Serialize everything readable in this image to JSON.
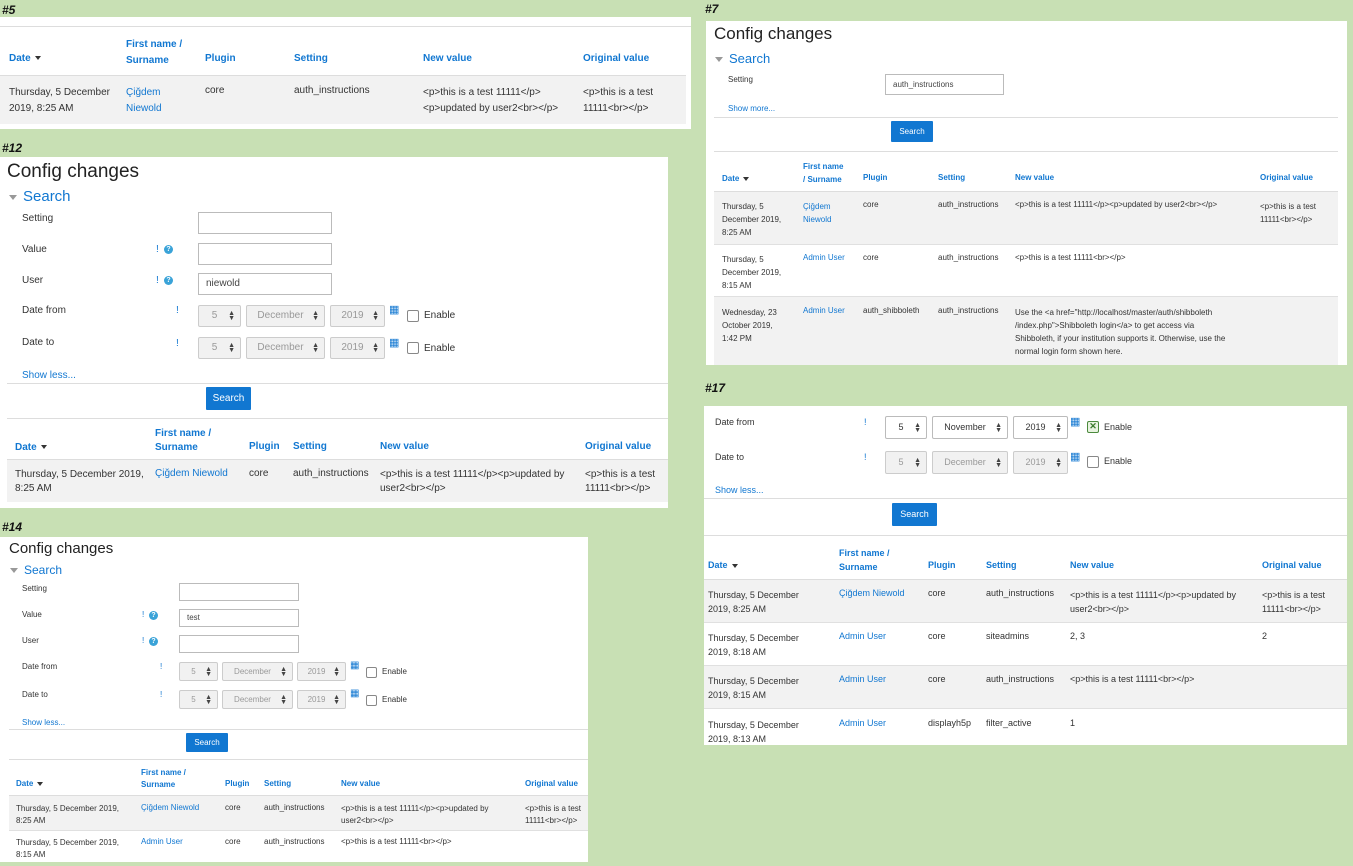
{
  "p5": {
    "label": "#5",
    "headers": {
      "date": "Date",
      "name1": "First name /",
      "name2": "Surname",
      "plugin": "Plugin",
      "setting": "Setting",
      "newval": "New value",
      "orig": "Original value"
    },
    "rows": [
      {
        "date1": "Thursday, 5 December",
        "date2": "2019, 8:25 AM",
        "user1": "Çiğdem",
        "user2": "Niewold",
        "plugin": "core",
        "setting": "auth_instructions",
        "new1": "<p>this is a test 11111</p>",
        "new2": "<p>updated by user2<br></p>",
        "orig1": "<p>this is a test",
        "orig2": "11111<br></p>"
      }
    ]
  },
  "p12": {
    "label": "#12",
    "title": "Config changes",
    "search": "Search",
    "f_setting": "Setting",
    "f_value": "Value",
    "f_user": "User",
    "user_value": "niewold",
    "f_datefrom": "Date from",
    "f_dateto": "Date to",
    "mark": "!",
    "help": "?",
    "day": "5",
    "month": "December",
    "year": "2019",
    "enable": "Enable",
    "show": "Show less...",
    "button": "Search",
    "headers": {
      "date": "Date",
      "name1": "First name /",
      "name2": "Surname",
      "plugin": "Plugin",
      "setting": "Setting",
      "newval": "New value",
      "orig": "Original value"
    },
    "rows": [
      {
        "date1": "Thursday, 5 December 2019,",
        "date2": "8:25 AM",
        "user": "Çiğdem Niewold",
        "plugin": "core",
        "setting": "auth_instructions",
        "new1": "<p>this is a test 11111</p><p>updated by",
        "new2": "user2<br></p>",
        "orig1": "<p>this is a test",
        "orig2": "11111<br></p>"
      }
    ]
  },
  "p14": {
    "label": "#14",
    "title": "Config changes",
    "search": "Search",
    "f_setting": "Setting",
    "f_value": "Value",
    "value_value": "test",
    "f_user": "User",
    "f_datefrom": "Date from",
    "f_dateto": "Date to",
    "mark": "!",
    "help": "?",
    "day": "5",
    "month": "December",
    "year": "2019",
    "enable": "Enable",
    "show": "Show less...",
    "button": "Search",
    "headers": {
      "date": "Date",
      "name1": "First name /",
      "name2": "Surname",
      "plugin": "Plugin",
      "setting": "Setting",
      "newval": "New value",
      "orig": "Original value"
    },
    "rows": [
      {
        "date1": "Thursday, 5 December 2019,",
        "date2": "8:25 AM",
        "user": "Çiğdem Niewold",
        "plugin": "core",
        "setting": "auth_instructions",
        "new1": "<p>this is a test 11111</p><p>updated by",
        "new2": "user2<br></p>",
        "orig1": "<p>this is a test",
        "orig2": "11111<br></p>"
      },
      {
        "date1": "Thursday, 5 December 2019,",
        "date2": "8:15 AM",
        "user": "Admin User",
        "plugin": "core",
        "setting": "auth_instructions",
        "new1": "<p>this is a test 11111<br></p>",
        "new2": "",
        "orig1": "",
        "orig2": ""
      }
    ]
  },
  "p7": {
    "label": "#7",
    "title": "Config changes",
    "search": "Search",
    "f_setting": "Setting",
    "setting_value": "auth_instructions",
    "show": "Show more...",
    "button": "Search",
    "headers": {
      "date": "Date",
      "name1": "First name",
      "name2": "/ Surname",
      "plugin": "Plugin",
      "setting": "Setting",
      "newval": "New value",
      "orig": "Original value"
    },
    "rows": [
      {
        "date1": "Thursday, 5",
        "date2": "December 2019,",
        "date3": "8:25 AM",
        "user1": "Çiğdem",
        "user2": "Niewold",
        "plugin": "core",
        "setting": "auth_instructions",
        "new1": "<p>this is a test 11111</p><p>updated by user2<br></p>",
        "new2": "",
        "new3": "",
        "new4": "",
        "orig1": "<p>this is a test",
        "orig2": "11111<br></p>"
      },
      {
        "date1": "Thursday, 5",
        "date2": "December 2019,",
        "date3": "8:15 AM",
        "user1": "Admin User",
        "user2": "",
        "plugin": "core",
        "setting": "auth_instructions",
        "new1": "<p>this is a test 11111<br></p>",
        "new2": "",
        "new3": "",
        "new4": "",
        "orig1": "",
        "orig2": ""
      },
      {
        "date1": "Wednesday, 23",
        "date2": "October 2019,",
        "date3": "1:42 PM",
        "user1": "Admin User",
        "user2": "",
        "plugin": "auth_shibboleth",
        "setting": "auth_instructions",
        "new1": "Use the <a href=\"http://localhost/master/auth/shibboleth",
        "new2": "/index.php\">Shibboleth login</a> to get access via",
        "new3": "Shibboleth, if your institution supports it. Otherwise, use the",
        "new4": "normal login form shown here.",
        "orig1": "",
        "orig2": ""
      }
    ]
  },
  "p17": {
    "label": "#17",
    "f_datefrom": "Date from",
    "f_dateto": "Date to",
    "mark": "!",
    "from_day": "5",
    "from_month": "November",
    "from_year": "2019",
    "to_day": "5",
    "to_month": "December",
    "to_year": "2019",
    "enable": "Enable",
    "show": "Show less...",
    "button": "Search",
    "headers": {
      "date": "Date",
      "name1": "First name /",
      "name2": "Surname",
      "plugin": "Plugin",
      "setting": "Setting",
      "newval": "New value",
      "orig": "Original value"
    },
    "rows": [
      {
        "date1": "Thursday, 5 December",
        "date2": "2019, 8:25 AM",
        "user": "Çiğdem Niewold",
        "plugin": "core",
        "setting": "auth_instructions",
        "new1": "<p>this is a test 11111</p><p>updated by",
        "new2": "user2<br></p>",
        "orig1": "<p>this is a test",
        "orig2": "11111<br></p>"
      },
      {
        "date1": "Thursday, 5 December",
        "date2": "2019, 8:18 AM",
        "user": "Admin User",
        "plugin": "core",
        "setting": "siteadmins",
        "new1": "2, 3",
        "new2": "",
        "orig1": "2",
        "orig2": ""
      },
      {
        "date1": "Thursday, 5 December",
        "date2": "2019, 8:15 AM",
        "user": "Admin User",
        "plugin": "core",
        "setting": "auth_instructions",
        "new1": "<p>this is a test 11111<br></p>",
        "new2": "",
        "orig1": "",
        "orig2": ""
      },
      {
        "date1": "Thursday, 5 December",
        "date2": "2019, 8:13 AM",
        "user": "Admin User",
        "plugin": "displayh5p",
        "setting": "filter_active",
        "new1": "1",
        "new2": "",
        "orig1": "",
        "orig2": ""
      }
    ]
  }
}
